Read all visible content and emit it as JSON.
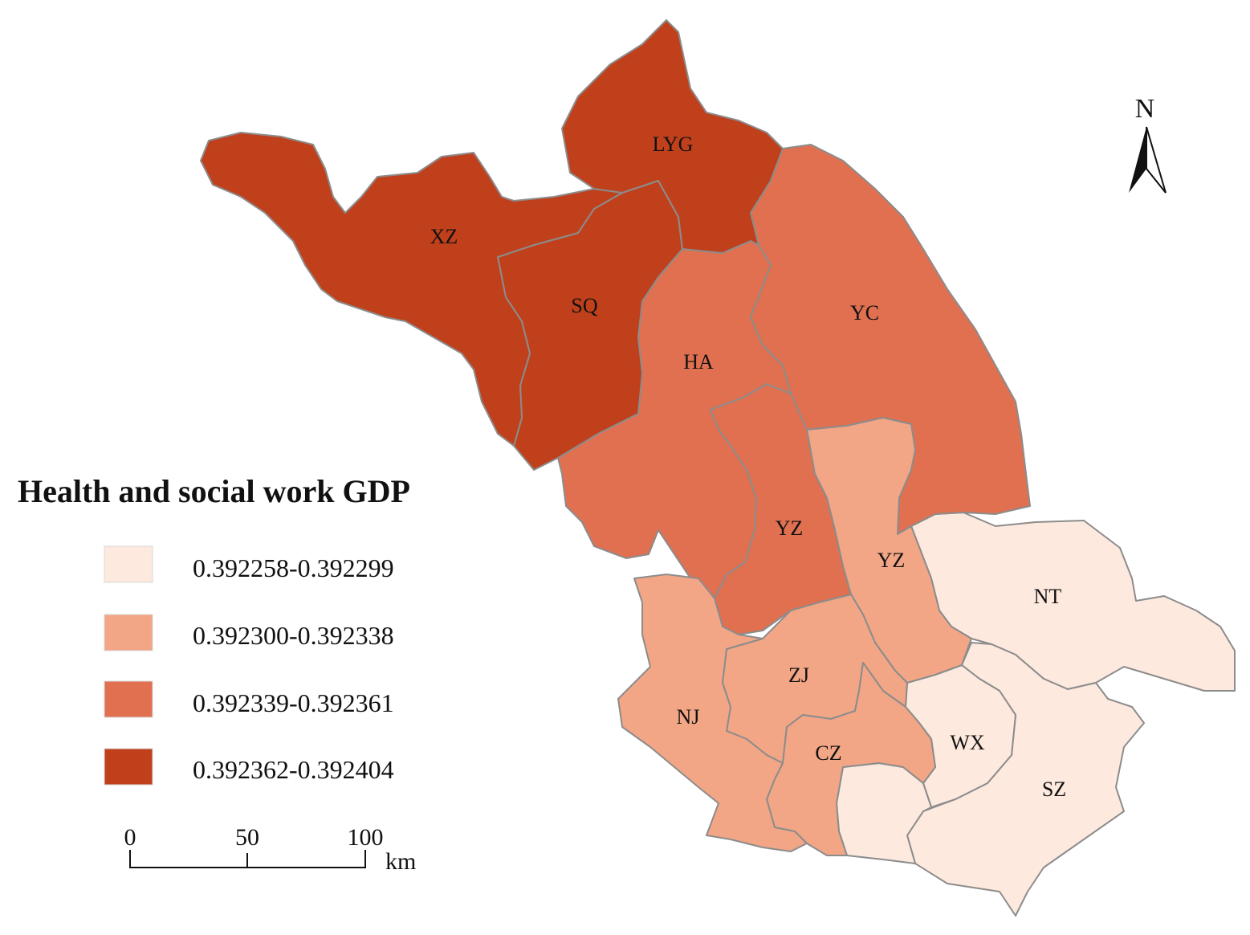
{
  "legend": {
    "title": "Health and social work GDP",
    "classes": [
      {
        "range": "0.392258-0.392299",
        "color": "#fde9de"
      },
      {
        "range": "0.392300-0.392338",
        "color": "#f2a685"
      },
      {
        "range": "0.392339-0.392361",
        "color": "#e07050"
      },
      {
        "range": "0.392362-0.392404",
        "color": "#c0401c"
      }
    ]
  },
  "regions": [
    {
      "code": "XZ",
      "class": 3
    },
    {
      "code": "LYG",
      "class": 3
    },
    {
      "code": "SQ",
      "class": 3
    },
    {
      "code": "YC",
      "class": 2
    },
    {
      "code": "HA",
      "class": 2
    },
    {
      "code": "YZ",
      "class": 2
    },
    {
      "code": "YZ",
      "class": 1
    },
    {
      "code": "NT",
      "class": 0
    },
    {
      "code": "ZJ",
      "class": 1
    },
    {
      "code": "NJ",
      "class": 1
    },
    {
      "code": "CZ",
      "class": 1
    },
    {
      "code": "WX",
      "class": 0
    },
    {
      "code": "SZ",
      "class": 0
    }
  ],
  "scale_bar": {
    "ticks": [
      "0",
      "50",
      "100"
    ],
    "unit": "km"
  },
  "north_arrow": {
    "label": "N",
    "icon": "north-arrow-icon"
  },
  "colors": {
    "border": "#8c8c8c",
    "background": "#ffffff"
  }
}
